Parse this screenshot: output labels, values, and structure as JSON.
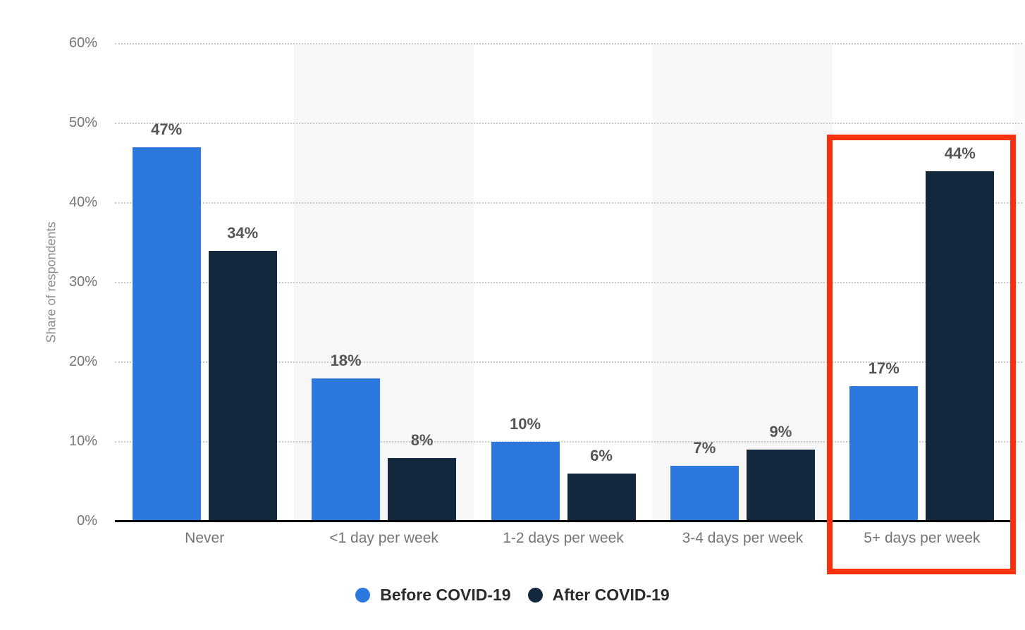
{
  "chart_data": {
    "type": "bar",
    "ylabel": "Share of respondents",
    "categories": [
      "Never",
      "<1 day per week",
      "1-2 days per week",
      "3-4 days per week",
      "5+ days per week"
    ],
    "series": [
      {
        "name": "Before COVID-19",
        "color": "#2d78de",
        "values": [
          47,
          18,
          10,
          7,
          17
        ]
      },
      {
        "name": "After COVID-19",
        "color": "#13283c",
        "values": [
          34,
          8,
          6,
          9,
          44
        ]
      }
    ],
    "value_suffix": "%",
    "y_ticks": [
      "0%",
      "10%",
      "20%",
      "30%",
      "40%",
      "50%",
      "60%"
    ],
    "ylim": [
      0,
      60
    ],
    "grid": "horizontal-dotted",
    "band_color": "#f7f7f7",
    "legend_position": "bottom",
    "highlight": {
      "category": "5+ days per week",
      "values": [
        "17%",
        "44%"
      ],
      "box_color": "#f8300d"
    }
  }
}
